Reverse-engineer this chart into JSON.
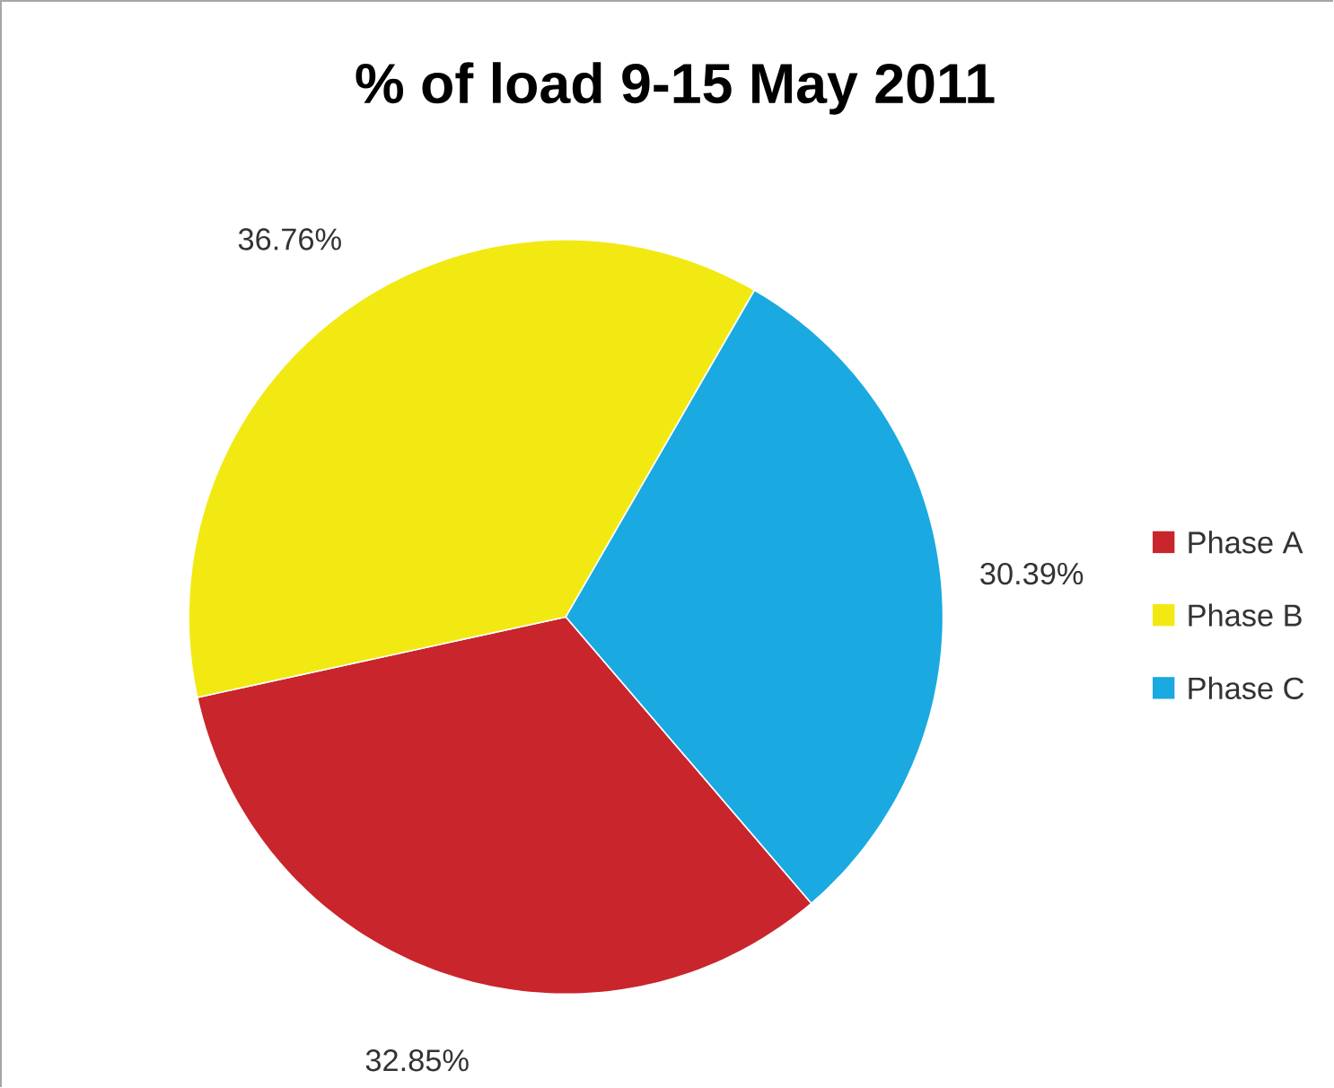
{
  "chart_data": {
    "type": "pie",
    "title": "% of load 9-15 May 2011",
    "categories": [
      "Phase A",
      "Phase B",
      "Phase C"
    ],
    "values": [
      32.85,
      36.76,
      30.39
    ],
    "value_labels": [
      "32.85%",
      "36.76%",
      "30.39%"
    ],
    "colors": [
      "#c9252c",
      "#f2e912",
      "#1aa9e0"
    ],
    "legend": "right"
  }
}
